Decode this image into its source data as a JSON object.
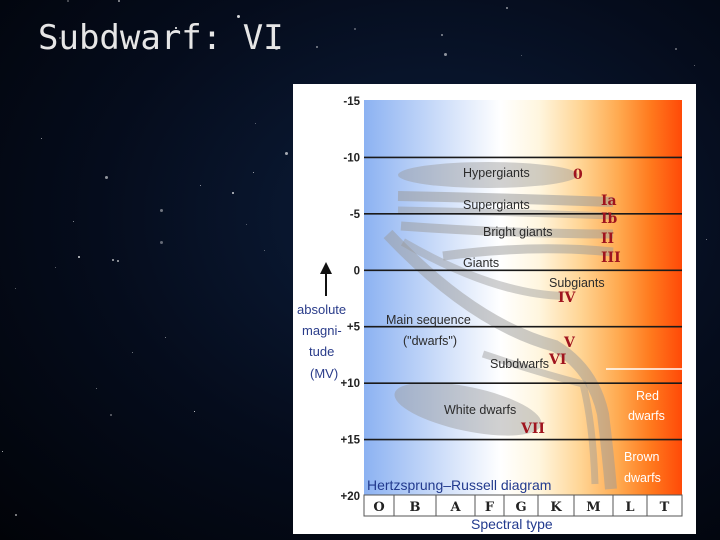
{
  "slide": {
    "title": "Subdwarf: VI"
  },
  "diagram": {
    "title": "Hertzsprung–Russell diagram",
    "x_axis_label": "Spectral type",
    "y_axis_label_lines": [
      "absolute",
      "magni-",
      "tude"
    ],
    "y_axis_symbol": "(MV)",
    "spectral_types": [
      "O",
      "B",
      "A",
      "F",
      "G",
      "K",
      "M",
      "L",
      "T"
    ],
    "magnitude_ticks": [
      {
        "label": "-15",
        "value": -15
      },
      {
        "label": "-10",
        "value": -10
      },
      {
        "label": "-5",
        "value": -5
      },
      {
        "label": "0",
        "value": 0
      },
      {
        "label": "+5",
        "value": 5
      },
      {
        "label": "+10",
        "value": 10
      },
      {
        "label": "+15",
        "value": 15
      },
      {
        "label": "+20",
        "value": 20
      }
    ],
    "regions": [
      {
        "name": "Hypergiants",
        "class": "0"
      },
      {
        "name": "Supergiants",
        "class": "Ia"
      },
      {
        "name": "Bright giants",
        "class": "II"
      },
      {
        "name": "Giants",
        "class": "III"
      },
      {
        "name": "Subgiants",
        "class": "IV"
      },
      {
        "name": "Main sequence",
        "sub": "(\"dwarfs\")",
        "class": "V"
      },
      {
        "name": "Subdwarfs",
        "class": "VI"
      },
      {
        "name": "White dwarfs",
        "class": "VII"
      }
    ],
    "extra_classes": [
      "Ib"
    ],
    "dwarf_labels": {
      "red": [
        "Red",
        "dwarfs"
      ],
      "brown": [
        "Brown",
        "dwarfs"
      ]
    },
    "colors": {
      "hot": "#8fb4f0",
      "mid": "#ffffff",
      "cool": "#ff5a0a",
      "roman": "#a0141e",
      "axis_blue": "#223a8e"
    }
  }
}
